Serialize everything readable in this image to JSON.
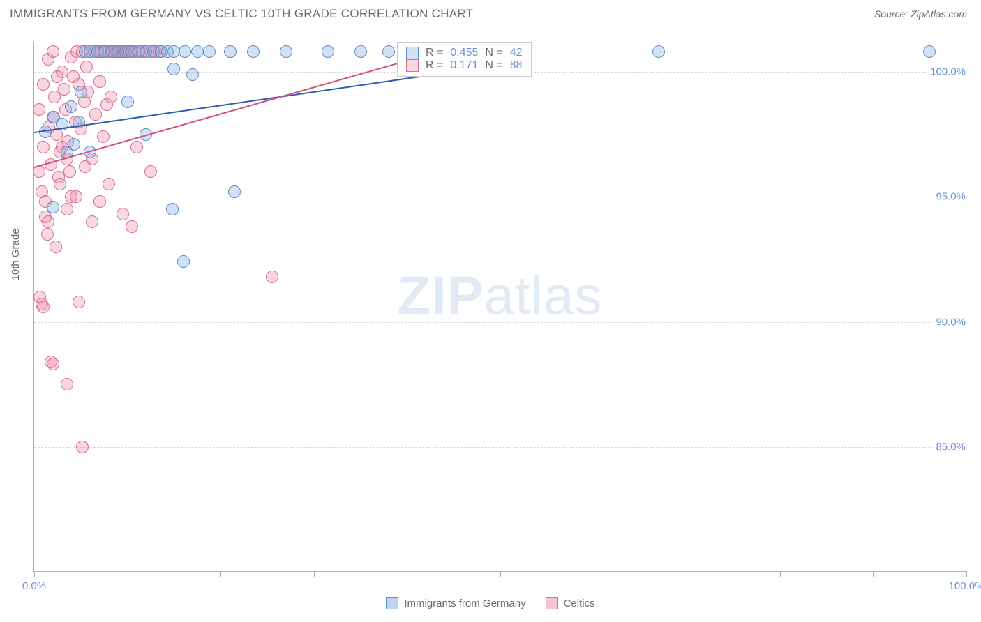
{
  "title": "IMMIGRANTS FROM GERMANY VS CELTIC 10TH GRADE CORRELATION CHART",
  "source": "Source: ZipAtlas.com",
  "ylabel": "10th Grade",
  "watermark_a": "ZIP",
  "watermark_b": "atlas",
  "chart": {
    "type": "scatter",
    "xlim": [
      0,
      100
    ],
    "ylim": [
      80,
      101.2
    ],
    "y_ticks": [
      85.0,
      90.0,
      95.0,
      100.0
    ],
    "y_tick_labels": [
      "85.0%",
      "90.0%",
      "95.0%",
      "100.0%"
    ],
    "x_ticks": [
      0,
      10,
      20,
      30,
      40,
      50,
      60,
      70,
      80,
      90,
      100
    ],
    "x_tick_left_label": "0.0%",
    "x_tick_right_label": "100.0%",
    "grid_color": "#d8d8d8",
    "axis_color": "#b0b0b0",
    "background_color": "#ffffff",
    "point_radius": 9,
    "point_border_width": 1.2,
    "series": [
      {
        "name": "Immigrants from Germany",
        "fill": "rgba(130,170,225,0.35)",
        "stroke": "#5b8bd0",
        "r_label": "R =",
        "r_value": "0.455",
        "n_label": "N =",
        "n_value": "42",
        "trend": {
          "x1": 0,
          "y1": 97.6,
          "x2": 50,
          "y2": 100.3,
          "color": "#2b5fb0"
        },
        "points": [
          [
            1.2,
            97.6
          ],
          [
            2.1,
            98.2
          ],
          [
            3.0,
            97.9
          ],
          [
            3.5,
            96.8
          ],
          [
            4.0,
            98.6
          ],
          [
            4.3,
            97.1
          ],
          [
            5.0,
            99.2
          ],
          [
            5.5,
            100.8
          ],
          [
            6.0,
            100.8
          ],
          [
            6.8,
            100.8
          ],
          [
            7.5,
            100.8
          ],
          [
            8.3,
            100.8
          ],
          [
            9.0,
            100.8
          ],
          [
            9.8,
            100.8
          ],
          [
            10.5,
            100.8
          ],
          [
            11.2,
            100.8
          ],
          [
            12.0,
            100.8
          ],
          [
            12.8,
            100.8
          ],
          [
            13.6,
            100.8
          ],
          [
            14.3,
            100.8
          ],
          [
            15.0,
            100.8
          ],
          [
            16.2,
            100.8
          ],
          [
            17.5,
            100.8
          ],
          [
            18.8,
            100.8
          ],
          [
            21.0,
            100.8
          ],
          [
            23.5,
            100.8
          ],
          [
            27.0,
            100.8
          ],
          [
            31.5,
            100.8
          ],
          [
            35.0,
            100.8
          ],
          [
            38.0,
            100.8
          ],
          [
            67.0,
            100.8
          ],
          [
            96.0,
            100.8
          ],
          [
            4.8,
            98.0
          ],
          [
            10.0,
            98.8
          ],
          [
            15.0,
            100.1
          ],
          [
            17.0,
            99.9
          ],
          [
            14.8,
            94.5
          ],
          [
            12.0,
            97.5
          ],
          [
            6.0,
            96.8
          ],
          [
            2.0,
            94.6
          ],
          [
            21.5,
            95.2
          ],
          [
            16.0,
            92.4
          ]
        ]
      },
      {
        "name": "Celtics",
        "fill": "rgba(235,140,165,0.35)",
        "stroke": "#d76f92",
        "r_label": "R =",
        "r_value": "0.171",
        "n_label": "N =",
        "n_value": "88",
        "trend": {
          "x1": 0,
          "y1": 96.2,
          "x2": 45,
          "y2": 101.0,
          "color": "#d7507a"
        },
        "points": [
          [
            0.5,
            96.0
          ],
          [
            0.8,
            95.2
          ],
          [
            1.0,
            97.0
          ],
          [
            1.2,
            94.2
          ],
          [
            1.4,
            93.5
          ],
          [
            1.6,
            97.8
          ],
          [
            1.8,
            96.3
          ],
          [
            2.0,
            98.2
          ],
          [
            2.2,
            99.0
          ],
          [
            2.4,
            97.5
          ],
          [
            2.6,
            95.8
          ],
          [
            2.8,
            96.8
          ],
          [
            3.0,
            100.0
          ],
          [
            3.2,
            99.3
          ],
          [
            3.4,
            98.5
          ],
          [
            3.6,
            97.2
          ],
          [
            3.8,
            96.0
          ],
          [
            4.0,
            100.6
          ],
          [
            4.2,
            99.8
          ],
          [
            4.4,
            98.0
          ],
          [
            4.6,
            100.8
          ],
          [
            4.8,
            99.5
          ],
          [
            5.0,
            97.7
          ],
          [
            5.2,
            100.8
          ],
          [
            5.4,
            98.8
          ],
          [
            5.6,
            100.2
          ],
          [
            5.8,
            99.2
          ],
          [
            6.0,
            100.8
          ],
          [
            6.2,
            96.5
          ],
          [
            6.4,
            100.8
          ],
          [
            6.6,
            98.3
          ],
          [
            6.8,
            100.8
          ],
          [
            7.0,
            99.6
          ],
          [
            7.2,
            100.8
          ],
          [
            7.4,
            97.4
          ],
          [
            7.6,
            100.8
          ],
          [
            7.8,
            98.7
          ],
          [
            8.0,
            100.8
          ],
          [
            8.2,
            99.0
          ],
          [
            8.4,
            100.8
          ],
          [
            8.6,
            100.8
          ],
          [
            8.8,
            100.8
          ],
          [
            9.0,
            100.8
          ],
          [
            9.2,
            100.8
          ],
          [
            9.4,
            100.8
          ],
          [
            9.6,
            100.8
          ],
          [
            9.8,
            100.8
          ],
          [
            10.0,
            100.8
          ],
          [
            10.2,
            100.8
          ],
          [
            10.4,
            100.8
          ],
          [
            10.8,
            100.8
          ],
          [
            11.2,
            100.8
          ],
          [
            11.6,
            100.8
          ],
          [
            12.0,
            100.8
          ],
          [
            12.5,
            100.8
          ],
          [
            13.0,
            100.8
          ],
          [
            13.5,
            100.8
          ],
          [
            0.6,
            91.0
          ],
          [
            0.8,
            90.7
          ],
          [
            1.0,
            90.6
          ],
          [
            1.8,
            88.4
          ],
          [
            2.0,
            88.3
          ],
          [
            3.5,
            87.5
          ],
          [
            5.2,
            85.0
          ],
          [
            1.2,
            94.8
          ],
          [
            1.5,
            94.0
          ],
          [
            2.3,
            93.0
          ],
          [
            2.8,
            95.5
          ],
          [
            3.5,
            94.5
          ],
          [
            4.5,
            95.0
          ],
          [
            5.5,
            96.2
          ],
          [
            6.2,
            94.0
          ],
          [
            7.0,
            94.8
          ],
          [
            8.0,
            95.5
          ],
          [
            9.5,
            94.3
          ],
          [
            10.5,
            93.8
          ],
          [
            11.0,
            97.0
          ],
          [
            12.5,
            96.0
          ],
          [
            0.5,
            98.5
          ],
          [
            1.0,
            99.5
          ],
          [
            1.5,
            100.5
          ],
          [
            2.0,
            100.8
          ],
          [
            2.5,
            99.8
          ],
          [
            3.0,
            97.0
          ],
          [
            3.5,
            96.5
          ],
          [
            4.0,
            95.0
          ],
          [
            25.5,
            91.8
          ],
          [
            4.8,
            90.8
          ]
        ]
      }
    ]
  },
  "bottom_legend": [
    {
      "label": "Immigrants from Germany",
      "fill": "rgba(130,170,225,0.5)",
      "stroke": "#5b8bd0"
    },
    {
      "label": "Celtics",
      "fill": "rgba(235,140,165,0.5)",
      "stroke": "#d76f92"
    }
  ]
}
